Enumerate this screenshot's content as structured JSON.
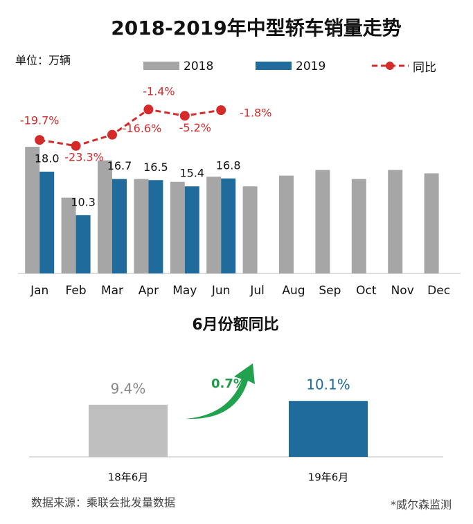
{
  "chart_data": [
    {
      "type": "bar",
      "title": "2018-2019年中型轿车销量走势",
      "unit_label": "单位：万辆",
      "categories": [
        "Jan",
        "Feb",
        "Mar",
        "Apr",
        "May",
        "Jun",
        "Jul",
        "Aug",
        "Sep",
        "Oct",
        "Nov",
        "Dec"
      ],
      "series": [
        {
          "name": "2018",
          "color": "#a6a6a6",
          "values": [
            22.4,
            13.4,
            20.0,
            16.7,
            16.2,
            17.1,
            15.4,
            17.3,
            18.3,
            16.7,
            18.3,
            17.7
          ]
        },
        {
          "name": "2019",
          "color": "#1f6c9c",
          "values": [
            18.0,
            10.3,
            16.7,
            16.5,
            15.4,
            16.8,
            null,
            null,
            null,
            null,
            null,
            null
          ],
          "value_labels": [
            "18.0",
            "10.3",
            "16.7",
            "16.5",
            "15.4",
            "16.8",
            null,
            null,
            null,
            null,
            null,
            null
          ]
        },
        {
          "name": "同比",
          "type": "line",
          "axis": "y2",
          "color": "#d42a2a",
          "values": [
            -19.7,
            -23.3,
            -16.6,
            -1.4,
            -5.2,
            -1.8,
            null,
            null,
            null,
            null,
            null,
            null
          ],
          "value_labels": [
            "-19.7%",
            "-23.3%",
            "-16.6%",
            "-1.4%",
            "-5.2%",
            "-1.8%",
            null,
            null,
            null,
            null,
            null,
            null
          ]
        }
      ],
      "ylim": [
        0,
        30
      ],
      "y2lim": [
        -100,
        2
      ]
    },
    {
      "type": "bar",
      "title": "6月份额同比",
      "categories": [
        "18年6月",
        "19年6月"
      ],
      "values": [
        9.4,
        10.1
      ],
      "value_labels": [
        "9.4%",
        "10.1%"
      ],
      "colors": [
        "#bfbfbf",
        "#1f6c9c"
      ],
      "annotation": "0.7%",
      "ylim": [
        0,
        12
      ]
    }
  ],
  "source": "数据来源：乘联会批发量数据",
  "note": "*威尔森监测"
}
